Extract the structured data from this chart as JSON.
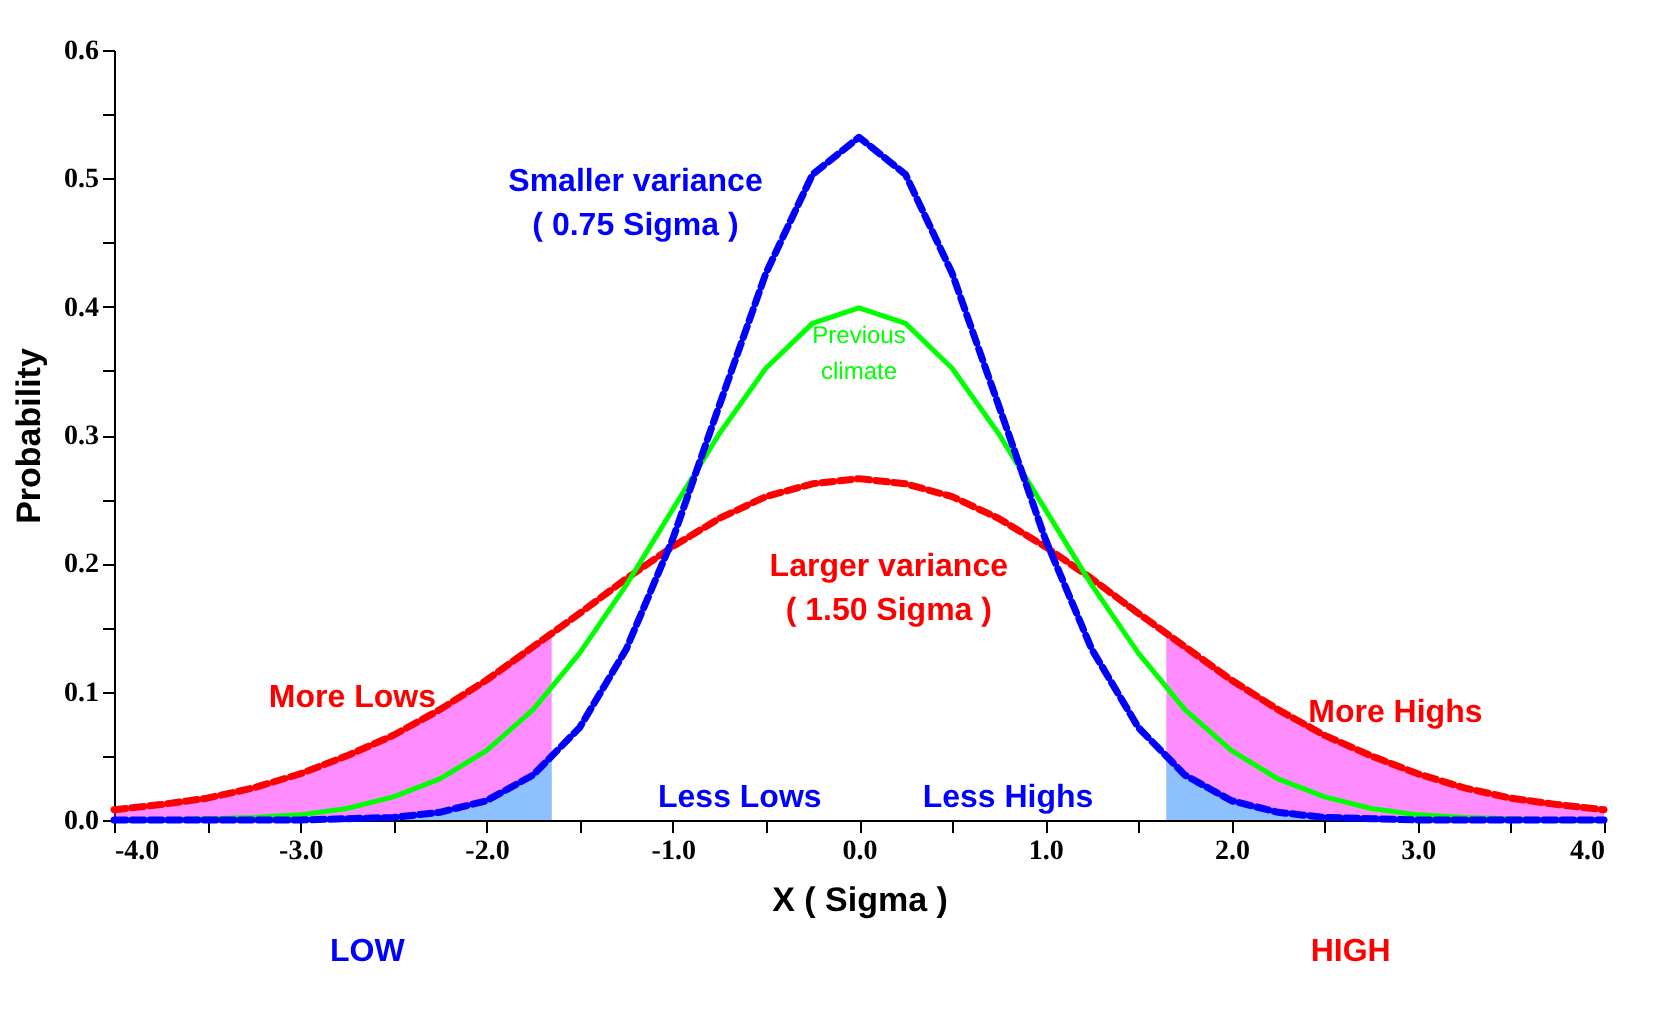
{
  "chart_data": {
    "type": "line",
    "xlabel": "X ( Sigma )",
    "ylabel": "Probability",
    "x": [
      -4,
      -3.75,
      -3.5,
      -3.25,
      -3,
      -2.75,
      -2.5,
      -2.25,
      -2,
      -1.75,
      -1.5,
      -1.25,
      -1,
      -0.75,
      -0.5,
      -0.25,
      0,
      0.25,
      0.5,
      0.75,
      1,
      1.25,
      1.5,
      1.75,
      2,
      2.25,
      2.5,
      2.75,
      3,
      3.25,
      3.5,
      3.75,
      4
    ],
    "series": [
      {
        "type": "area",
        "color": "#ff00ff",
        "x": [
          -4,
          -3.75,
          -3.5,
          -3.25,
          -3,
          -2.75,
          -2.5,
          -2.25,
          -2,
          -1.75,
          -1.65
        ],
        "values": [
          0.008,
          0.012,
          0.017,
          0.025,
          0.036,
          0.05,
          0.066,
          0.086,
          0.109,
          0.135,
          0.145
        ]
      },
      {
        "type": "area",
        "color": "#ff00ff",
        "x": [
          1.65,
          1.75,
          2,
          2.25,
          2.5,
          2.75,
          3,
          3.25,
          3.5,
          3.75,
          4
        ],
        "values": [
          0.145,
          0.135,
          0.109,
          0.086,
          0.066,
          0.05,
          0.036,
          0.025,
          0.017,
          0.012,
          0.008
        ]
      },
      {
        "type": "area",
        "color": "#00ffff",
        "x": [
          -4,
          -3.75,
          -3.5,
          -3.25,
          -3,
          -2.75,
          -2.5,
          -2.25,
          -2,
          -1.75,
          -1.65
        ],
        "values": [
          0,
          0,
          0,
          0,
          0,
          0.001,
          0.002,
          0.006,
          0.015,
          0.035,
          0.047
        ]
      },
      {
        "type": "area",
        "color": "#00ffff",
        "x": [
          1.65,
          1.75,
          2,
          2.25,
          2.5,
          2.75,
          3,
          3.25,
          3.5,
          3.75,
          4
        ],
        "values": [
          0.047,
          0.035,
          0.015,
          0.006,
          0.002,
          0.001,
          0,
          0,
          0,
          0,
          0
        ]
      },
      {
        "color": "#ff0000",
        "line_style": "dashed",
        "values": [
          0.008,
          0.012,
          0.017,
          0.025,
          0.036,
          0.05,
          0.066,
          0.086,
          0.109,
          0.135,
          0.161,
          0.188,
          0.213,
          0.235,
          0.252,
          0.262,
          0.266,
          0.262,
          0.252,
          0.235,
          0.213,
          0.188,
          0.161,
          0.135,
          0.109,
          0.086,
          0.066,
          0.05,
          0.036,
          0.025,
          0.017,
          0.012,
          0.008
        ]
      },
      {
        "color": "#00ff00",
        "line_style": "solid",
        "values": [
          0,
          0,
          0.001,
          0.002,
          0.004,
          0.009,
          0.018,
          0.032,
          0.054,
          0.086,
          0.13,
          0.183,
          0.242,
          0.301,
          0.352,
          0.387,
          0.399,
          0.387,
          0.352,
          0.301,
          0.242,
          0.183,
          0.13,
          0.086,
          0.054,
          0.032,
          0.018,
          0.009,
          0.004,
          0.002,
          0.001,
          0,
          0
        ]
      },
      {
        "color": "#0000ff",
        "line_style": "dashed",
        "values": [
          0,
          0,
          0,
          0,
          0,
          0.001,
          0.002,
          0.006,
          0.015,
          0.035,
          0.072,
          0.133,
          0.219,
          0.323,
          0.426,
          0.503,
          0.532,
          0.503,
          0.426,
          0.323,
          0.219,
          0.133,
          0.072,
          0.035,
          0.015,
          0.006,
          0.002,
          0.001,
          0,
          0,
          0,
          0,
          0
        ]
      }
    ],
    "xlim": [
      -4,
      4
    ],
    "xticks": [
      {
        "value": -4,
        "label": "-4.0"
      },
      {
        "value": -3.5,
        "label": null
      },
      {
        "value": -3,
        "label": "-3.0"
      },
      {
        "value": -2.5,
        "label": null
      },
      {
        "value": -2,
        "label": "-2.0"
      },
      {
        "value": -1.5,
        "label": null
      },
      {
        "value": -1,
        "label": "-1.0"
      },
      {
        "value": -0.5,
        "label": null
      },
      {
        "value": 0,
        "label": "0.0"
      },
      {
        "value": 0.5,
        "label": null
      },
      {
        "value": 1,
        "label": "1.0"
      },
      {
        "value": 1.5,
        "label": null
      },
      {
        "value": 2,
        "label": "2.0"
      },
      {
        "value": 2.5,
        "label": null
      },
      {
        "value": 3,
        "label": "3.0"
      },
      {
        "value": 3.5,
        "label": null
      },
      {
        "value": 4,
        "label": "4.0"
      }
    ],
    "ylim": [
      0,
      0.6
    ],
    "yticks": [
      {
        "value": 0,
        "label": "0.0"
      },
      {
        "value": 0.05,
        "label": null
      },
      0.1,
      {
        "value": 0.15,
        "label": null
      },
      0.2,
      {
        "value": 0.25,
        "label": null
      },
      0.3,
      {
        "value": 0.35,
        "label": null
      },
      0.4,
      {
        "value": 0.45,
        "label": null
      },
      0.5,
      {
        "value": 0.55,
        "label": null
      },
      0.6
    ],
    "grid": false,
    "marker": "none",
    "annotations": [
      "Smaller variance\n( 0.75 Sigma )",
      "Previous\nclimate",
      "Larger variance\n( 1.50 Sigma )",
      "More Lows",
      "Less Lows",
      "Less Highs",
      "More Highs",
      "LOW",
      "HIGH"
    ]
  }
}
